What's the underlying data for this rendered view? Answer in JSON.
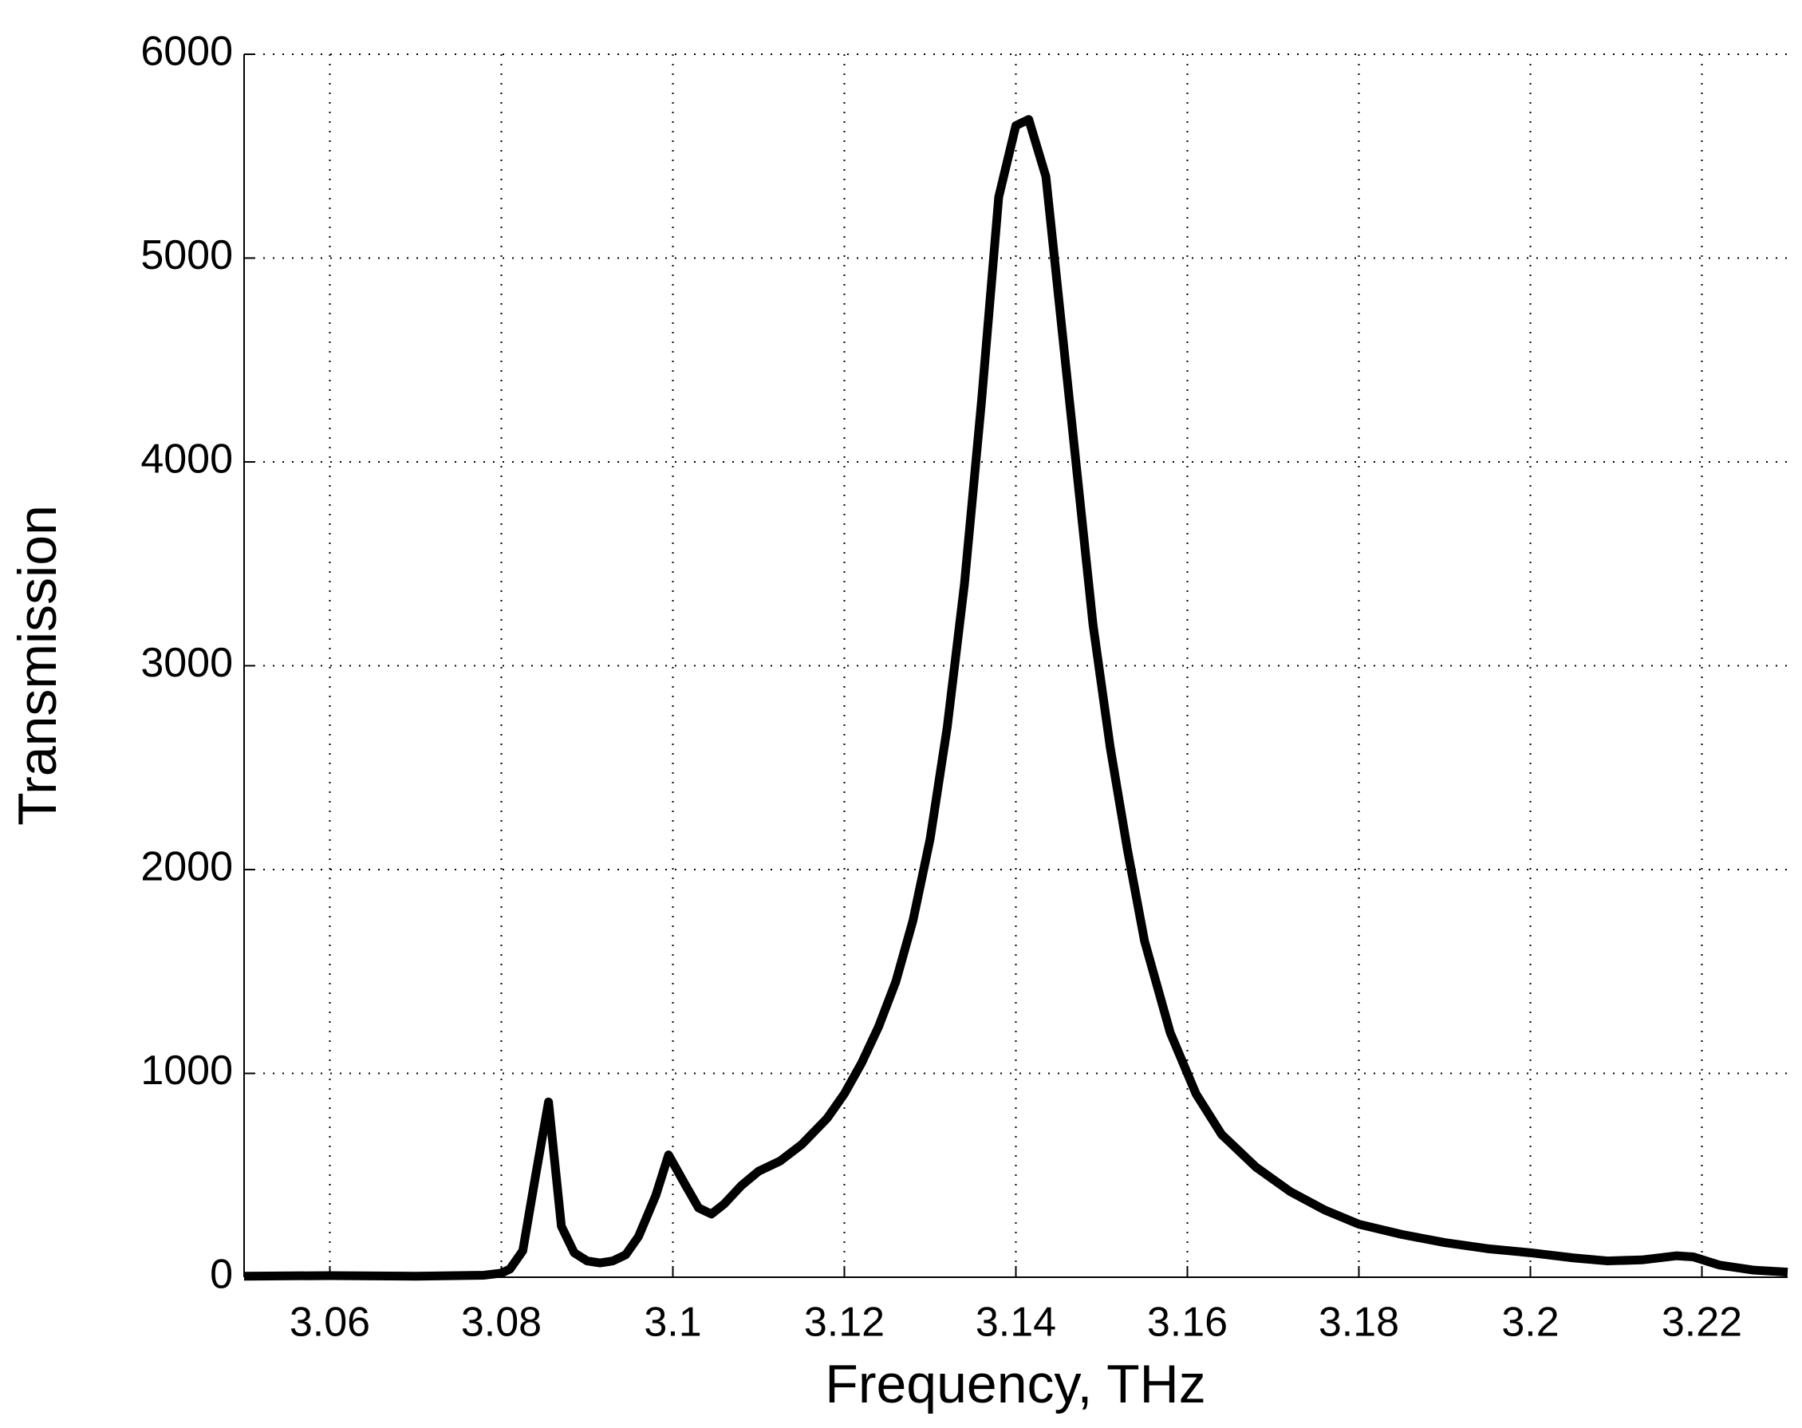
{
  "chart_data": {
    "type": "line",
    "xlabel": "Frequency, THz",
    "ylabel": "Transmission",
    "x": [
      3.05,
      3.06,
      3.07,
      3.078,
      3.08,
      3.081,
      3.0825,
      3.084,
      3.0855,
      3.087,
      3.0885,
      3.09,
      3.0915,
      3.093,
      3.0945,
      3.096,
      3.098,
      3.0995,
      3.1015,
      3.103,
      3.1045,
      3.106,
      3.108,
      3.11,
      3.1125,
      3.115,
      3.118,
      3.12,
      3.122,
      3.124,
      3.126,
      3.128,
      3.13,
      3.132,
      3.134,
      3.136,
      3.138,
      3.14,
      3.1415,
      3.1435,
      3.145,
      3.147,
      3.149,
      3.151,
      3.153,
      3.155,
      3.158,
      3.161,
      3.164,
      3.168,
      3.172,
      3.176,
      3.18,
      3.185,
      3.19,
      3.195,
      3.2,
      3.205,
      3.209,
      3.213,
      3.217,
      3.219,
      3.222,
      3.226,
      3.23
    ],
    "series": [
      {
        "color": "#000000",
        "values": [
          5,
          8,
          5,
          10,
          20,
          40,
          130,
          500,
          860,
          250,
          120,
          80,
          70,
          80,
          110,
          200,
          400,
          600,
          450,
          340,
          310,
          360,
          450,
          520,
          570,
          650,
          780,
          900,
          1050,
          1230,
          1450,
          1750,
          2150,
          2700,
          3400,
          4300,
          5300,
          5650,
          5680,
          5400,
          4800,
          4000,
          3200,
          2600,
          2100,
          1650,
          1200,
          900,
          700,
          540,
          420,
          330,
          260,
          210,
          170,
          140,
          120,
          95,
          80,
          85,
          105,
          100,
          60,
          35,
          25
        ]
      }
    ],
    "xlim": [
      3.05,
      3.23
    ],
    "xticks": [
      3.06,
      3.08,
      3.1,
      3.12,
      3.14,
      3.16,
      3.18,
      3.2,
      3.22
    ],
    "ylim": [
      0,
      6000
    ],
    "yticks": [
      0,
      1000,
      2000,
      3000,
      4000,
      5000,
      6000
    ],
    "grid": true
  }
}
